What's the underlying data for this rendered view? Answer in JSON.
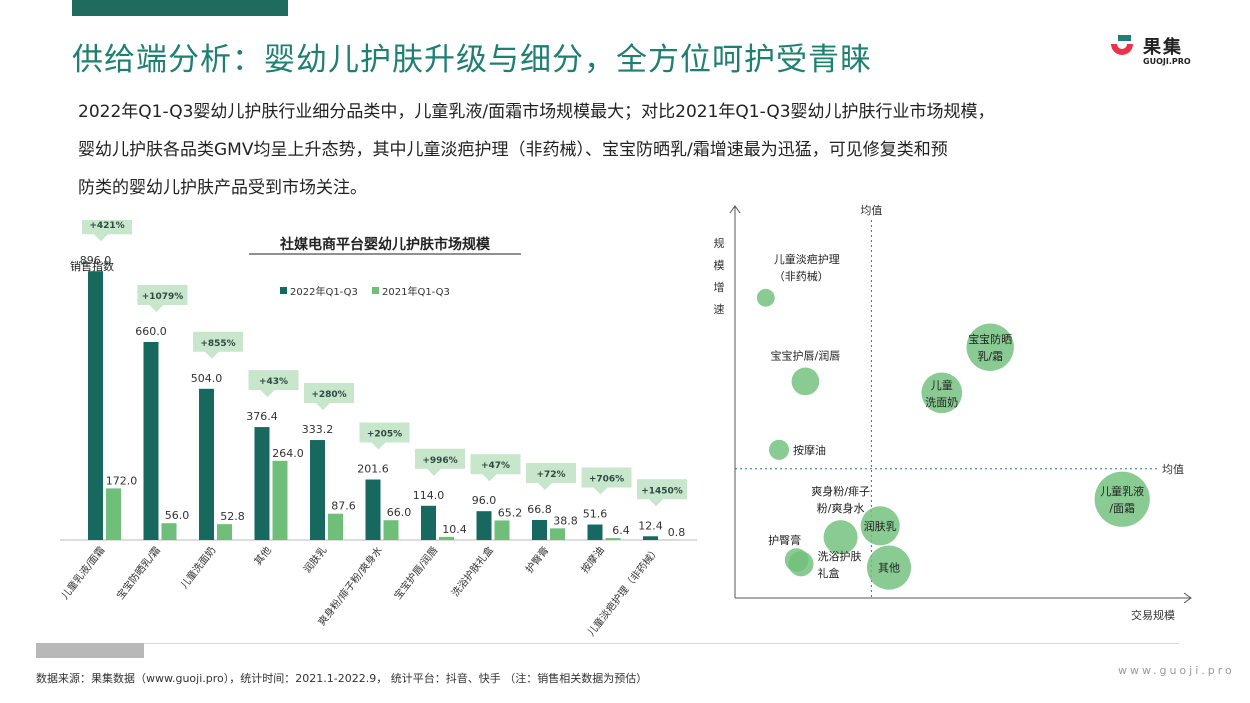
{
  "header": {
    "title": "供给端分析：婴幼儿护肤升级与细分，全方位呵护受青睐",
    "logo_cn": "果集",
    "logo_en": "GUOJI.PRO"
  },
  "summary": {
    "line1": "2022年Q1-Q3婴幼儿护肤行业细分品类中，儿童乳液/面霜市场规模最大；对比2021年Q1-Q3婴幼儿护肤行业市场规模，",
    "line2": "婴幼儿护肤各品类GMV均呈上升态势，其中儿童淡疤护理（非药械）、宝宝防晒乳/霜增速最为迅猛，可见修复类和预",
    "line3": "防类的婴幼儿护肤产品受到市场关注。"
  },
  "footer": {
    "source": "数据来源：果集数据（www.guoji.pro），统计时间：2021.1-2022.9，  统计平台：抖音、快手  （注：销售相关数据为预估）",
    "site": "www.guoji.pro"
  },
  "colors": {
    "brand": "#1f7f72",
    "series_2022": "#17695f",
    "series_2021": "#6fbf7a",
    "bubble": "#6fbf7a",
    "growth_box": "#c7e6cc"
  },
  "chart_data": [
    {
      "type": "bar",
      "title": "社媒电商平台婴幼儿护肤市场规模",
      "ylabel": "销售指数",
      "legend_position": "top",
      "ylim": [
        0,
        1000
      ],
      "categories": [
        "儿童乳液/面霜",
        "宝宝防晒乳/霜",
        "儿童洗面奶",
        "其他",
        "润肤乳",
        "爽身粉/痱子粉/爽身水",
        "宝宝护唇/润唇",
        "洗浴护肤礼盒",
        "护臀膏",
        "按摩油",
        "儿童淡疤护理（非药械）"
      ],
      "series": [
        {
          "name": "2022年Q1-Q3",
          "values": [
            "896.0",
            "660.0",
            "504.0",
            "376.4",
            "333.2",
            "201.6",
            "114.0",
            "96.0",
            "66.8",
            "51.6",
            "12.4"
          ]
        },
        {
          "name": "2021年Q1-Q3",
          "values": [
            "172.0",
            "56.0",
            "52.8",
            "264.0",
            "87.6",
            "66.0",
            "10.4",
            "65.2",
            "38.8",
            "6.4",
            "0.8"
          ]
        }
      ],
      "growth_labels": [
        "+421%",
        "+1079%",
        "+855%",
        "+43%",
        "+280%",
        "+205%",
        "+996%",
        "+47%",
        "+72%",
        "+706%",
        "+1450%"
      ]
    },
    {
      "type": "scatter",
      "xlabel": "交易规模",
      "ylabel": "规模增速",
      "xlim": [
        0,
        100
      ],
      "ylim": [
        0,
        100
      ],
      "reference_x_label": "均值",
      "reference_y_label": "均值",
      "reference_x": 31,
      "reference_y": 34,
      "points": [
        {
          "label_lines": [
            "儿童淡疤护理",
            "（非药械）"
          ],
          "x": 7,
          "y": 79,
          "size": 2,
          "label_pos": "above-right"
        },
        {
          "label_lines": [
            "宝宝护唇/润唇"
          ],
          "x": 16,
          "y": 57,
          "size": 8,
          "label_pos": "above"
        },
        {
          "label_lines": [
            "按摩油"
          ],
          "x": 10,
          "y": 39,
          "size": 3,
          "label_pos": "right"
        },
        {
          "label_lines": [
            "宝宝防晒",
            "乳/霜"
          ],
          "x": 58,
          "y": 66,
          "size": 32,
          "label_pos": "inside"
        },
        {
          "label_lines": [
            "儿童",
            "洗面奶"
          ],
          "x": 47,
          "y": 54,
          "size": 22,
          "label_pos": "inside"
        },
        {
          "label_lines": [
            "儿童乳液",
            "/面霜"
          ],
          "x": 88,
          "y": 26,
          "size": 46,
          "label_pos": "inside"
        },
        {
          "label_lines": [
            "润肤乳"
          ],
          "x": 33,
          "y": 19,
          "size": 20,
          "label_pos": "inside"
        },
        {
          "label_lines": [
            "爽身粉/痱子",
            "粉/爽身水"
          ],
          "x": 24,
          "y": 16,
          "size": 14,
          "label_pos": "above"
        },
        {
          "label_lines": [
            "其他"
          ],
          "x": 35,
          "y": 8,
          "size": 27,
          "label_pos": "inside"
        },
        {
          "label_lines": [
            "护臀膏"
          ],
          "x": 14,
          "y": 10,
          "size": 5,
          "label_pos": "above-left"
        },
        {
          "label_lines": [
            "洗浴护肤",
            "礼盒"
          ],
          "x": 15,
          "y": 9,
          "size": 6,
          "label_pos": "right"
        }
      ]
    }
  ]
}
